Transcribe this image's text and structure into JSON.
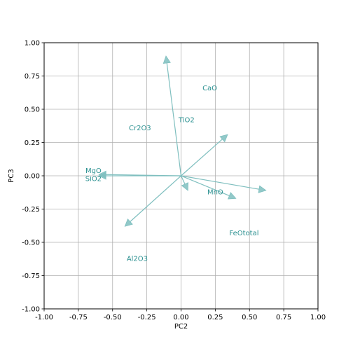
{
  "chart_data": {
    "type": "biplot",
    "xlabel": "PC2",
    "ylabel": "PC3",
    "xlim": [
      -1.0,
      1.0
    ],
    "ylim": [
      -1.0,
      1.0
    ],
    "grid": true,
    "x_ticks": [
      "-1.00",
      "-0.75",
      "-0.50",
      "-0.25",
      "0.00",
      "0.25",
      "0.50",
      "0.75",
      "1.00"
    ],
    "y_ticks": [
      "-1.00",
      "-0.75",
      "-0.50",
      "-0.25",
      "0.00",
      "0.25",
      "0.50",
      "0.75",
      "1.00"
    ],
    "vector_color": "#7fbfbf",
    "label_color": "#2a9090",
    "vectors": [
      {
        "label": "CaO",
        "x": -0.11,
        "y": 0.9,
        "label_x": 0.21,
        "label_y": 0.66
      },
      {
        "label": "TiO2",
        "x": 0.34,
        "y": 0.31,
        "label_x": 0.04,
        "label_y": 0.42
      },
      {
        "label": "Cr2O3",
        "x": 0.05,
        "y": -0.11,
        "label_x": -0.3,
        "label_y": 0.36
      },
      {
        "label": "MgO",
        "x": -0.6,
        "y": 0.01,
        "label_x": -0.64,
        "label_y": 0.04
      },
      {
        "label": "SiO2",
        "x": -0.6,
        "y": 0.0,
        "label_x": -0.64,
        "label_y": -0.02
      },
      {
        "label": "MnO",
        "x": 0.4,
        "y": -0.17,
        "label_x": 0.25,
        "label_y": -0.12
      },
      {
        "label": "FeOtotal",
        "x": 0.62,
        "y": -0.11,
        "label_x": 0.46,
        "label_y": -0.43
      },
      {
        "label": "Al2O3",
        "x": -0.41,
        "y": -0.38,
        "label_x": -0.32,
        "label_y": -0.62
      }
    ]
  }
}
